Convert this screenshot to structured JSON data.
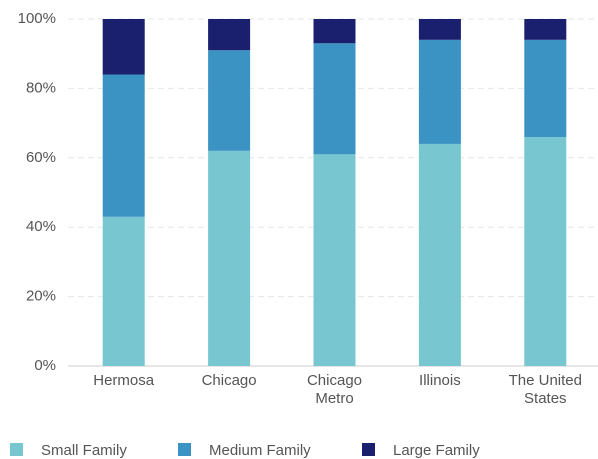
{
  "chart_data": {
    "type": "stacked_bar",
    "categories": [
      "Hermosa",
      "Chicago",
      "Chicago Metro",
      "Illinois",
      "The United States"
    ],
    "series": [
      {
        "name": "Small Family",
        "color": "#78c6d0",
        "values": [
          43,
          62,
          61,
          64,
          66
        ]
      },
      {
        "name": "Medium Family",
        "color": "#3a93c3",
        "values": [
          41,
          29,
          32,
          30,
          28
        ]
      },
      {
        "name": "Large Family",
        "color": "#1a1f6e",
        "values": [
          16,
          9,
          7,
          6,
          6
        ]
      }
    ],
    "ylim": [
      0,
      100
    ],
    "yticks": [
      {
        "value": 0,
        "label": "0%"
      },
      {
        "value": 20,
        "label": "20%"
      },
      {
        "value": 40,
        "label": "40%"
      },
      {
        "value": 60,
        "label": "60%"
      },
      {
        "value": 80,
        "label": "80%"
      },
      {
        "value": 100,
        "label": "100%"
      }
    ],
    "grid": true,
    "legend": "bottom"
  }
}
